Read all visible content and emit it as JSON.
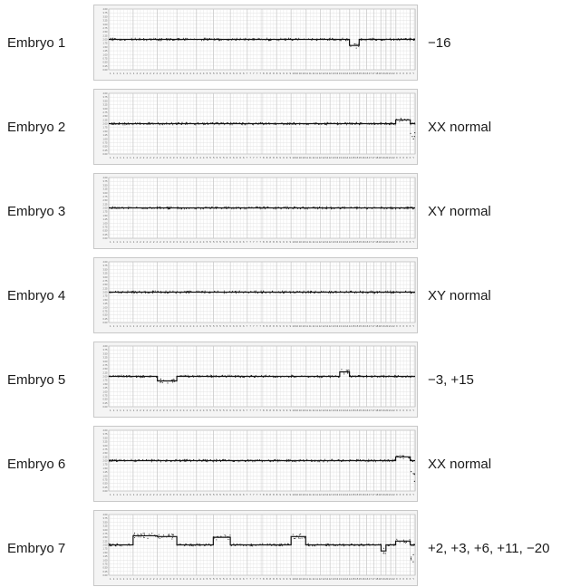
{
  "chart_data": {
    "type": "scatter",
    "y_tick_labels": [
      "4.00",
      "3.75",
      "3.50",
      "3.25",
      "3.00",
      "2.75",
      "2.50",
      "2.25",
      "2.00",
      "1.75",
      "1.50",
      "1.25",
      "1.00",
      "0.75",
      "0.50",
      "0.25",
      "0.00"
    ],
    "ylim": [
      0,
      4
    ],
    "baseline": 2.0,
    "chromosomes": [
      "1",
      "2",
      "3",
      "4",
      "5",
      "6",
      "7",
      "8",
      "9",
      "10",
      "11",
      "12",
      "13",
      "14",
      "15",
      "16",
      "17",
      "18",
      "19",
      "20",
      "21",
      "22",
      "X",
      "Y"
    ],
    "x_tick_labels": [
      "1",
      "1",
      "1",
      "1",
      "1",
      "1",
      "1",
      "1",
      "2",
      "2",
      "2",
      "2",
      "2",
      "2",
      "2",
      "2",
      "3",
      "3",
      "3",
      "3",
      "3",
      "3",
      "4",
      "4",
      "4",
      "4",
      "4",
      "4",
      "4",
      "5",
      "5",
      "5",
      "5",
      "5",
      "5",
      "6",
      "6",
      "6",
      "6",
      "6",
      "6",
      "7",
      "7",
      "7",
      "7",
      "7",
      "8",
      "8",
      "8",
      "8",
      "8",
      "9",
      "9",
      "9",
      "9",
      "10",
      "10",
      "10",
      "10",
      "11",
      "11",
      "11",
      "11",
      "12",
      "12",
      "12",
      "12",
      "13",
      "13",
      "13",
      "14",
      "14",
      "14",
      "15",
      "15",
      "15",
      "16",
      "16",
      "17",
      "17",
      "18",
      "18",
      "19",
      "20",
      "21",
      "22",
      "X",
      "X",
      "X",
      "X",
      "X",
      "Y"
    ],
    "embryos": [
      {
        "label": "Embryo 1",
        "result": "−16",
        "segments": [
          {
            "chromosome": "16",
            "copy_number": 1.6
          }
        ],
        "sex_pattern": "XY"
      },
      {
        "label": "Embryo 2",
        "result": "XX normal",
        "segments": [],
        "sex_pattern": "XX"
      },
      {
        "label": "Embryo 3",
        "result": "XY normal",
        "segments": [],
        "sex_pattern": "XY"
      },
      {
        "label": "Embryo 4",
        "result": "XY normal",
        "segments": [],
        "sex_pattern": "XY"
      },
      {
        "label": "Embryo 5",
        "result": "−3, +15",
        "segments": [
          {
            "chromosome": "3",
            "copy_number": 1.7
          },
          {
            "chromosome": "15",
            "copy_number": 2.3
          }
        ],
        "sex_pattern": "XY"
      },
      {
        "label": "Embryo 6",
        "result": "XX normal",
        "segments": [],
        "sex_pattern": "XX"
      },
      {
        "label": "Embryo 7",
        "result": "+2, +3, +6, +11, −20",
        "segments": [
          {
            "chromosome": "2",
            "copy_number": 2.6
          },
          {
            "chromosome": "3",
            "copy_number": 2.55
          },
          {
            "chromosome": "6",
            "copy_number": 2.5
          },
          {
            "chromosome": "11",
            "copy_number": 2.55
          },
          {
            "chromosome": "20",
            "copy_number": 1.6
          }
        ],
        "sex_pattern": "XX"
      }
    ]
  }
}
